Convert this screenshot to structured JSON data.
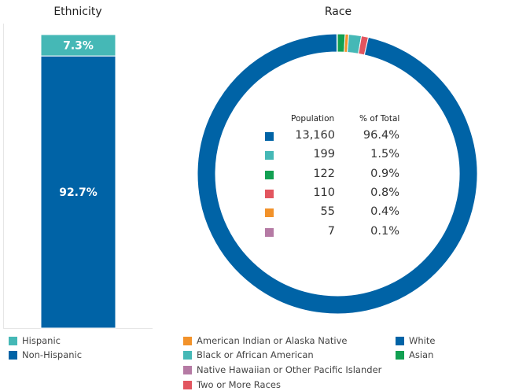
{
  "ethnicity_title": "Ethnicity",
  "race_title": "Race",
  "colors": {
    "hispanic": "#45b8b6",
    "non_hispanic": "#0063a6",
    "white": "#0063a6",
    "black": "#45b8b6",
    "asian": "#12a052",
    "two_or_more": "#e2555f",
    "american_indian": "#f2922a",
    "native_hawaiian": "#b57aa4"
  },
  "chart_data": [
    {
      "type": "bar",
      "title": "Ethnicity",
      "stacked": true,
      "categories": [
        "Ethnicity"
      ],
      "series": [
        {
          "name": "Hispanic",
          "values": [
            7.3
          ],
          "label": "7.3%",
          "color": "#45b8b6"
        },
        {
          "name": "Non-Hispanic",
          "values": [
            92.7
          ],
          "label": "92.7%",
          "color": "#0063a6"
        }
      ],
      "ylim": [
        0,
        100
      ],
      "legend": "bottom-left"
    },
    {
      "type": "pie",
      "donut": true,
      "title": "Race",
      "labels": [
        "White",
        "Black or African American",
        "Asian",
        "Two or More Races",
        "American Indian or Alaska Native",
        "Native Hawaiian or Other Pacific Islander"
      ],
      "values": [
        13160,
        199,
        122,
        110,
        55,
        7
      ],
      "display_values": [
        "13,160",
        "199",
        "122",
        "110",
        "55",
        "7"
      ],
      "percents": [
        "96.4%",
        "1.5%",
        "0.9%",
        "0.8%",
        "0.4%",
        "0.1%"
      ],
      "colors": [
        "#0063a6",
        "#45b8b6",
        "#12a052",
        "#e2555f",
        "#f2922a",
        "#b57aa4"
      ],
      "table_headers": {
        "population": "Population",
        "percent": "% of Total"
      },
      "legend": "bottom"
    }
  ],
  "legend": {
    "ethnicity": [
      "Hispanic",
      "Non-Hispanic"
    ],
    "race": {
      "american_indian": "American Indian or Alaska Native",
      "black": "Black or African American",
      "native_hawaiian": "Native Hawaiian or Other Pacific Islander",
      "two_or_more": "Two or More Races",
      "white": "White",
      "asian": "Asian"
    }
  }
}
